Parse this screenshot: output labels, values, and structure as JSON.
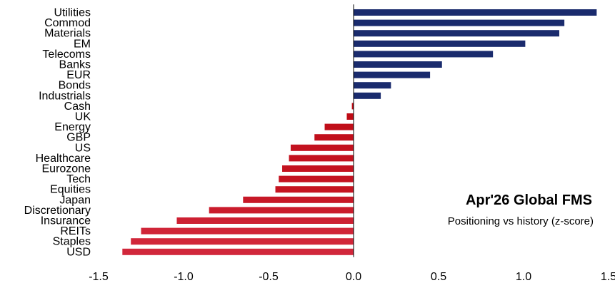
{
  "chart_data": {
    "type": "bar",
    "orientation": "horizontal",
    "title": "Apr'26 Global FMS",
    "subtitle": "Positioning vs history (z-score)",
    "categories": [
      "Utilities",
      "Commod",
      "Materials",
      "EM",
      "Telecoms",
      "Banks",
      "EUR",
      "Bonds",
      "Industrials",
      "Cash",
      "UK",
      "Energy",
      "GBP",
      "US",
      "Healthcare",
      "Eurozone",
      "Tech",
      "Equities",
      "Japan",
      "Discretionary",
      "Insurance",
      "REITs",
      "Staples",
      "USD"
    ],
    "values": [
      1.43,
      1.24,
      1.21,
      1.01,
      0.82,
      0.52,
      0.45,
      0.22,
      0.16,
      -0.01,
      -0.04,
      -0.17,
      -0.23,
      -0.37,
      -0.38,
      -0.42,
      -0.44,
      -0.46,
      -0.65,
      -0.85,
      -1.04,
      -1.25,
      -1.31,
      -1.36
    ],
    "xlim": [
      -1.5,
      1.5
    ],
    "xticks": [
      "-1.5",
      "-1.0",
      "-0.5",
      "0.0",
      "0.5",
      "1.0",
      "1.5"
    ],
    "grid": false,
    "colors": {
      "positive": "#1a2b6d",
      "negative": "#d2273a"
    }
  }
}
